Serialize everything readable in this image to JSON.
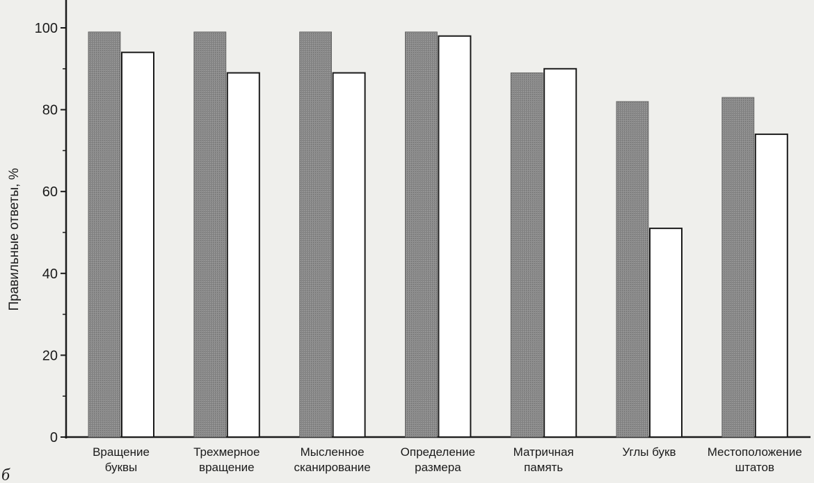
{
  "panel_label": "б",
  "colors": {
    "series_shaded": "#8a8a8a",
    "series_open": "#ffffff",
    "axis": "#1a1a1a"
  },
  "chart_data": {
    "type": "bar",
    "ylabel": "Правильные ответы, %",
    "ylim": [
      0,
      100
    ],
    "yticks": [
      0,
      20,
      40,
      60,
      80,
      100
    ],
    "grid": false,
    "legend": "none",
    "categories": [
      [
        "Вращение",
        "буквы"
      ],
      [
        "Трехмерное",
        "вращение"
      ],
      [
        "Мысленное",
        "сканирование"
      ],
      [
        "Определение",
        "размера"
      ],
      [
        "Матричная",
        "память"
      ],
      [
        "Углы букв"
      ],
      [
        "Местоположение",
        "штатов"
      ]
    ],
    "series": [
      {
        "fill": "shaded",
        "values": [
          99,
          99,
          99,
          99,
          89,
          82,
          83
        ]
      },
      {
        "fill": "open",
        "values": [
          94,
          89,
          89,
          98,
          90,
          51,
          74
        ]
      }
    ]
  }
}
